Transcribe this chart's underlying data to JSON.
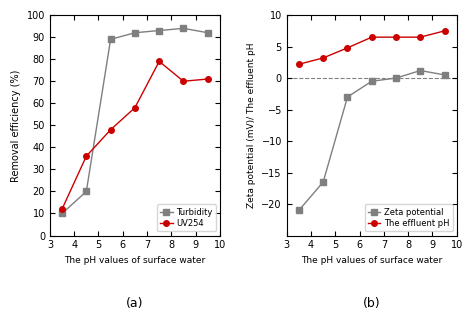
{
  "pH_x": [
    3.5,
    4.5,
    5.5,
    6.5,
    7.5,
    8.5,
    9.5
  ],
  "turbidity_y": [
    10,
    20,
    89,
    92,
    93,
    94,
    92
  ],
  "uv254_y": [
    12,
    36,
    48,
    58,
    79,
    70,
    71
  ],
  "zeta_y": [
    -21,
    -16.5,
    -3,
    -0.5,
    0,
    1.2,
    0.5
  ],
  "effluent_pH_y": [
    2.2,
    3.2,
    4.8,
    6.5,
    6.5,
    6.5,
    7.5
  ],
  "turbidity_color": "#7f7f7f",
  "uv254_color": "#cc0000",
  "zeta_color": "#7f7f7f",
  "effluent_color": "#cc0000",
  "xlabel": "The pH values of surface water",
  "ylabel_a": "Removal efficiency (%)",
  "ylabel_b": "Zeta potential (mV)/ The effluent pH",
  "label_a": "(a)",
  "label_b": "(b)",
  "legend_a": [
    "Turbidity",
    "UV254"
  ],
  "legend_b": [
    "Zeta potential",
    "The effluent pH"
  ],
  "xlim": [
    3,
    10
  ],
  "ylim_a": [
    0,
    100
  ],
  "ylim_b": [
    -25,
    10
  ],
  "yticks_a": [
    0,
    10,
    20,
    30,
    40,
    50,
    60,
    70,
    80,
    90,
    100
  ],
  "yticks_b": [
    -20,
    -15,
    -10,
    -5,
    0,
    5,
    10
  ],
  "xticks": [
    3,
    4,
    5,
    6,
    7,
    8,
    9,
    10
  ]
}
